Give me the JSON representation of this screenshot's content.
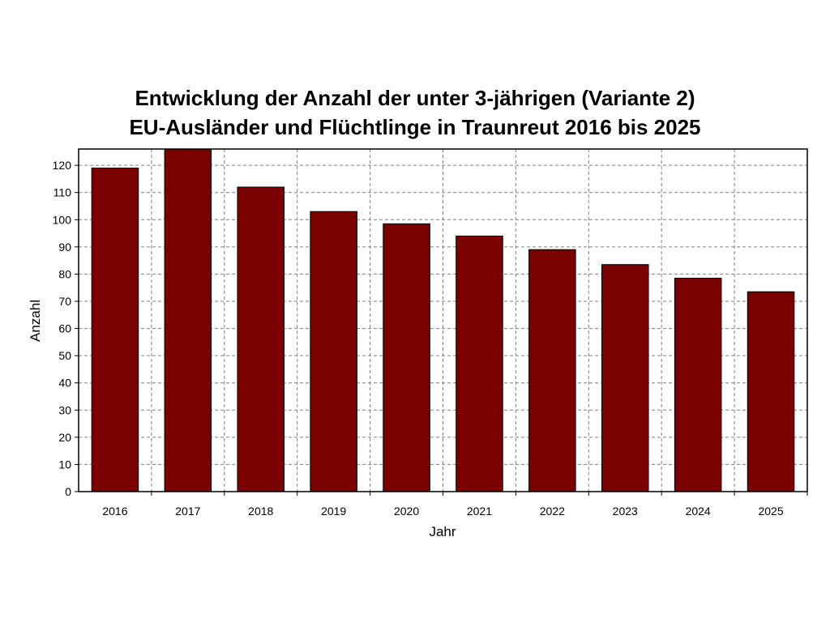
{
  "chart_data": {
    "type": "bar",
    "title_lines": [
      "Entwicklung der Anzahl der unter 3-jährigen (Variante 2)",
      "EU-Ausländer und Flüchtlinge in Traunreut 2016 bis 2025"
    ],
    "xlabel": "Jahr",
    "ylabel": "Anzahl",
    "categories": [
      "2016",
      "2017",
      "2018",
      "2019",
      "2020",
      "2021",
      "2022",
      "2023",
      "2024",
      "2025"
    ],
    "values": [
      119,
      127,
      112,
      103,
      98.5,
      94,
      89,
      83.5,
      78.5,
      73.5
    ],
    "ylim": [
      0,
      126
    ],
    "yticks": [
      0,
      10,
      20,
      30,
      40,
      50,
      60,
      70,
      80,
      90,
      100,
      110,
      120
    ],
    "grid": true,
    "bar_color": "#7b0000",
    "grid_color": "#808080"
  }
}
